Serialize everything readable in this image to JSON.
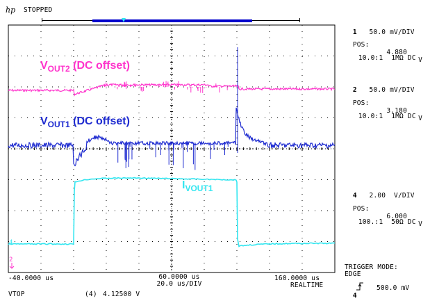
{
  "header": {
    "logo": "hp",
    "status": "STOPPED"
  },
  "colors": {
    "ch1": "#1e2bd0",
    "ch2": "#ff33cc",
    "ch4": "#33e6f0",
    "grid": "#000000",
    "bar_fill": "#0000cc"
  },
  "labels": {
    "vout2_main": "V",
    "vout2_sub": "OUT2",
    "vout2_note": "(DC offset)",
    "vout1_main": "V",
    "vout1_sub": "OUT1",
    "vout1_note": "(DC offset)",
    "ivout1_main": "I",
    "ivout1_sub": "VOUT1"
  },
  "channels": {
    "ch1": {
      "num": "1",
      "scale": "50.0 mV/DIV",
      "pos_label": "POS:",
      "pos_value": "4.880",
      "pos_unit": "V",
      "probe": "10.0:1",
      "imp": "1MΩ DC"
    },
    "ch2": {
      "num": "2",
      "scale": "50.0 mV/DIV",
      "pos_label": "POS:",
      "pos_value": "3.180",
      "pos_unit": "V",
      "probe": "10.0:1",
      "imp": "1MΩ DC"
    },
    "ch4": {
      "num": "4",
      "scale": "2.00  V/DIV",
      "pos_label": "POS:",
      "pos_value": "6.000",
      "pos_unit": "V",
      "probe": "100.:1",
      "imp": "50Ω DC"
    }
  },
  "trigger": {
    "mode_label": "TRIGGER MODE:",
    "mode": "EDGE",
    "channel": "4",
    "level": "500.0 mV"
  },
  "timebase": {
    "left": "-40.0000 us",
    "center": "60.0000 us",
    "per_div": "20.0 us/DIV",
    "right": "160.0000 us",
    "mode": "REALTIME"
  },
  "measurement": {
    "name": "VTOP",
    "channel": "(4)",
    "value": "4.12500 V"
  },
  "markers": {
    "ch4_marker": "4",
    "ch2_marker": "2"
  }
}
